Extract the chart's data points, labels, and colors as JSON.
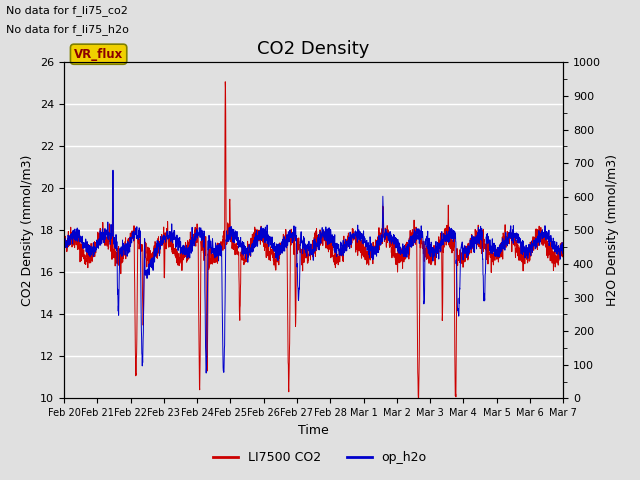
{
  "title": "CO2 Density",
  "xlabel": "Time",
  "ylabel_left": "CO2 Density (mmol/m3)",
  "ylabel_right": "H2O Density (mmol/m3)",
  "ylim_left": [
    10,
    26
  ],
  "ylim_right": [
    0,
    1000
  ],
  "yticks_left": [
    10,
    12,
    14,
    16,
    18,
    20,
    22,
    24,
    26
  ],
  "yticks_right": [
    0,
    100,
    200,
    300,
    400,
    500,
    600,
    700,
    800,
    900,
    1000
  ],
  "xtick_labels": [
    "Feb 20",
    "Feb 21",
    "Feb 22",
    "Feb 23",
    "Feb 24",
    "Feb 25",
    "Feb 26",
    "Feb 27",
    "Feb 28",
    "Mar 1",
    "Mar 2",
    "Mar 3",
    "Mar 4",
    "Mar 5",
    "Mar 6",
    "Mar 7"
  ],
  "note1": "No data for f_li75_co2",
  "note2": "No data for f_li75_h2o",
  "vr_flux_label": "VR_flux",
  "legend_entries": [
    "LI7500 CO2",
    "op_h2o"
  ],
  "legend_colors": [
    "#cc0000",
    "#0000cc"
  ],
  "bg_color": "#e0e0e0",
  "plot_bg_color": "#e0e0e0",
  "grid_color": "#ffffff",
  "title_fontsize": 13,
  "label_fontsize": 9,
  "tick_fontsize": 8,
  "note_fontsize": 8
}
